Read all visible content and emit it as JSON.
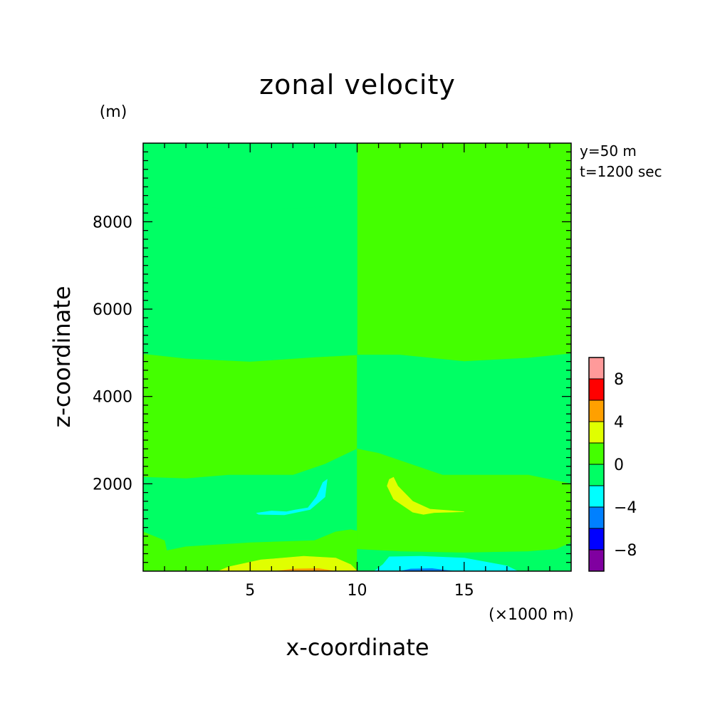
{
  "chart_data": {
    "type": "heatmap",
    "title": "zonal velocity",
    "xlabel": "x-coordinate",
    "ylabel": "z-coordinate",
    "x_unit": "(×1000 m)",
    "y_unit": "(m)",
    "annotations": [
      "y=50 m",
      "t=1200 sec"
    ],
    "xlim": [
      0,
      20
    ],
    "ylim": [
      0,
      9800
    ],
    "x_ticks": [
      5,
      10,
      15
    ],
    "y_ticks": [
      2000,
      4000,
      6000,
      8000
    ],
    "colorbar": {
      "levels": [
        -10,
        -8,
        -6,
        -4,
        -2,
        0,
        2,
        4,
        6,
        8,
        10
      ],
      "tick_labels": [
        -8,
        -4,
        0,
        4,
        8
      ],
      "colors": [
        "#8000a0",
        "#0000ff",
        "#0080ff",
        "#00ffff",
        "#00ff64",
        "#44ff00",
        "#e0ff00",
        "#ffa000",
        "#ff0000",
        "#ff9a9a"
      ]
    },
    "regions": [
      {
        "level": 0,
        "color": "#44ff00",
        "points": [
          [
            0,
            8500
          ],
          [
            0,
            9800
          ],
          [
            20,
            9800
          ],
          [
            20,
            8500
          ]
        ]
      },
      {
        "level": -1,
        "color": "#00ff64",
        "points": [
          [
            0,
            9800
          ],
          [
            10,
            9800
          ],
          [
            10,
            8400
          ],
          [
            8,
            8330
          ],
          [
            5,
            8250
          ],
          [
            2,
            8380
          ],
          [
            0,
            8500
          ]
        ]
      },
      {
        "level": -1,
        "color": "#00ff64",
        "points": [
          [
            0,
            8500
          ],
          [
            2,
            8380
          ],
          [
            5,
            8250
          ],
          [
            8,
            8330
          ],
          [
            10,
            8400
          ],
          [
            10,
            4950
          ],
          [
            8,
            4900
          ],
          [
            5,
            4800
          ],
          [
            2,
            4870
          ],
          [
            0,
            4980
          ]
        ]
      },
      {
        "level": -1,
        "color": "#00ff64",
        "points": [
          [
            10,
            4950
          ],
          [
            12,
            4950
          ],
          [
            15,
            4800
          ],
          [
            18,
            4880
          ],
          [
            20,
            4980
          ],
          [
            20,
            650
          ],
          [
            19.3,
            500
          ],
          [
            18,
            450
          ],
          [
            15,
            420
          ],
          [
            12,
            450
          ],
          [
            10,
            500
          ]
        ]
      },
      {
        "level": -1,
        "color": "#00ff64",
        "points": [
          [
            0,
            2150
          ],
          [
            2,
            2120
          ],
          [
            4,
            2200
          ],
          [
            7,
            2200
          ],
          [
            8.5,
            2450
          ],
          [
            10,
            2800
          ],
          [
            10,
            920
          ],
          [
            9.7,
            950
          ],
          [
            9,
            900
          ],
          [
            8,
            700
          ],
          [
            5,
            650
          ],
          [
            2,
            560
          ],
          [
            1.1,
            470
          ],
          [
            1,
            700
          ],
          [
            0,
            900
          ]
        ]
      },
      {
        "level": -1,
        "color": "#00ff64",
        "points": [
          [
            10,
            0
          ],
          [
            10,
            2800
          ],
          [
            11,
            2700
          ],
          [
            14,
            2200
          ],
          [
            18,
            2200
          ],
          [
            20,
            2000
          ],
          [
            20,
            1100
          ],
          [
            17,
            1300
          ],
          [
            14,
            1380
          ],
          [
            11,
            1400
          ],
          [
            10,
            1400
          ]
        ]
      },
      {
        "level": 0,
        "color": "#44ff00",
        "points": [
          [
            10,
            2800
          ],
          [
            11,
            2700
          ],
          [
            14,
            2200
          ],
          [
            18,
            2200
          ],
          [
            20,
            2000
          ],
          [
            20,
            650
          ],
          [
            19.3,
            500
          ],
          [
            18,
            450
          ],
          [
            15,
            420
          ],
          [
            12,
            450
          ],
          [
            10,
            500
          ]
        ]
      },
      {
        "level": 0,
        "color": "#44ff00",
        "points": [
          [
            0,
            0
          ],
          [
            0,
            900
          ],
          [
            1,
            700
          ],
          [
            1.1,
            470
          ],
          [
            2,
            560
          ],
          [
            5,
            650
          ],
          [
            8,
            700
          ],
          [
            9,
            900
          ],
          [
            9.7,
            950
          ],
          [
            10,
            920
          ],
          [
            10,
            0
          ]
        ]
      },
      {
        "level": -1,
        "color": "#00ff64",
        "points": [
          [
            10,
            0
          ],
          [
            10,
            500
          ],
          [
            12,
            450
          ],
          [
            15,
            420
          ],
          [
            18,
            450
          ],
          [
            19.3,
            500
          ],
          [
            20,
            650
          ],
          [
            20,
            0
          ]
        ]
      },
      {
        "level": 1,
        "color": "#e0ff00",
        "points": [
          [
            3.5,
            0
          ],
          [
            4,
            100
          ],
          [
            5.5,
            260
          ],
          [
            7.5,
            340
          ],
          [
            9,
            300
          ],
          [
            9.7,
            150
          ],
          [
            10,
            0
          ]
        ]
      },
      {
        "level": 2,
        "color": "#ffa000",
        "points": [
          [
            6.2,
            0
          ],
          [
            7,
            50
          ],
          [
            8.2,
            60
          ],
          [
            9,
            0
          ]
        ]
      },
      {
        "level": -2,
        "color": "#00ffff",
        "points": [
          [
            10.8,
            0
          ],
          [
            11.2,
            150
          ],
          [
            11.5,
            330
          ],
          [
            13,
            340
          ],
          [
            15,
            300
          ],
          [
            17,
            120
          ],
          [
            17.5,
            0
          ]
        ]
      },
      {
        "level": -3,
        "color": "#0080ff",
        "points": [
          [
            12,
            0
          ],
          [
            12.5,
            50
          ],
          [
            13.5,
            60
          ],
          [
            14.5,
            0
          ]
        ]
      },
      {
        "level": -2,
        "color": "#00ffff",
        "points": [
          [
            5.3,
            1330
          ],
          [
            6,
            1380
          ],
          [
            6.7,
            1360
          ],
          [
            7.1,
            1400
          ],
          [
            7.7,
            1450
          ],
          [
            8.1,
            1700
          ],
          [
            8.4,
            2030
          ],
          [
            8.6,
            2100
          ],
          [
            8.5,
            1700
          ],
          [
            7.8,
            1410
          ],
          [
            6.6,
            1290
          ],
          [
            5.4,
            1300
          ]
        ]
      },
      {
        "level": 1,
        "color": "#e0ff00",
        "points": [
          [
            11.5,
            2100
          ],
          [
            11.7,
            2150
          ],
          [
            11.9,
            1950
          ],
          [
            12.6,
            1600
          ],
          [
            13.4,
            1420
          ],
          [
            14.5,
            1380
          ],
          [
            15,
            1360
          ],
          [
            13.6,
            1340
          ],
          [
            13.1,
            1300
          ],
          [
            12.6,
            1350
          ],
          [
            11.7,
            1650
          ],
          [
            11.4,
            1950
          ]
        ]
      }
    ]
  }
}
